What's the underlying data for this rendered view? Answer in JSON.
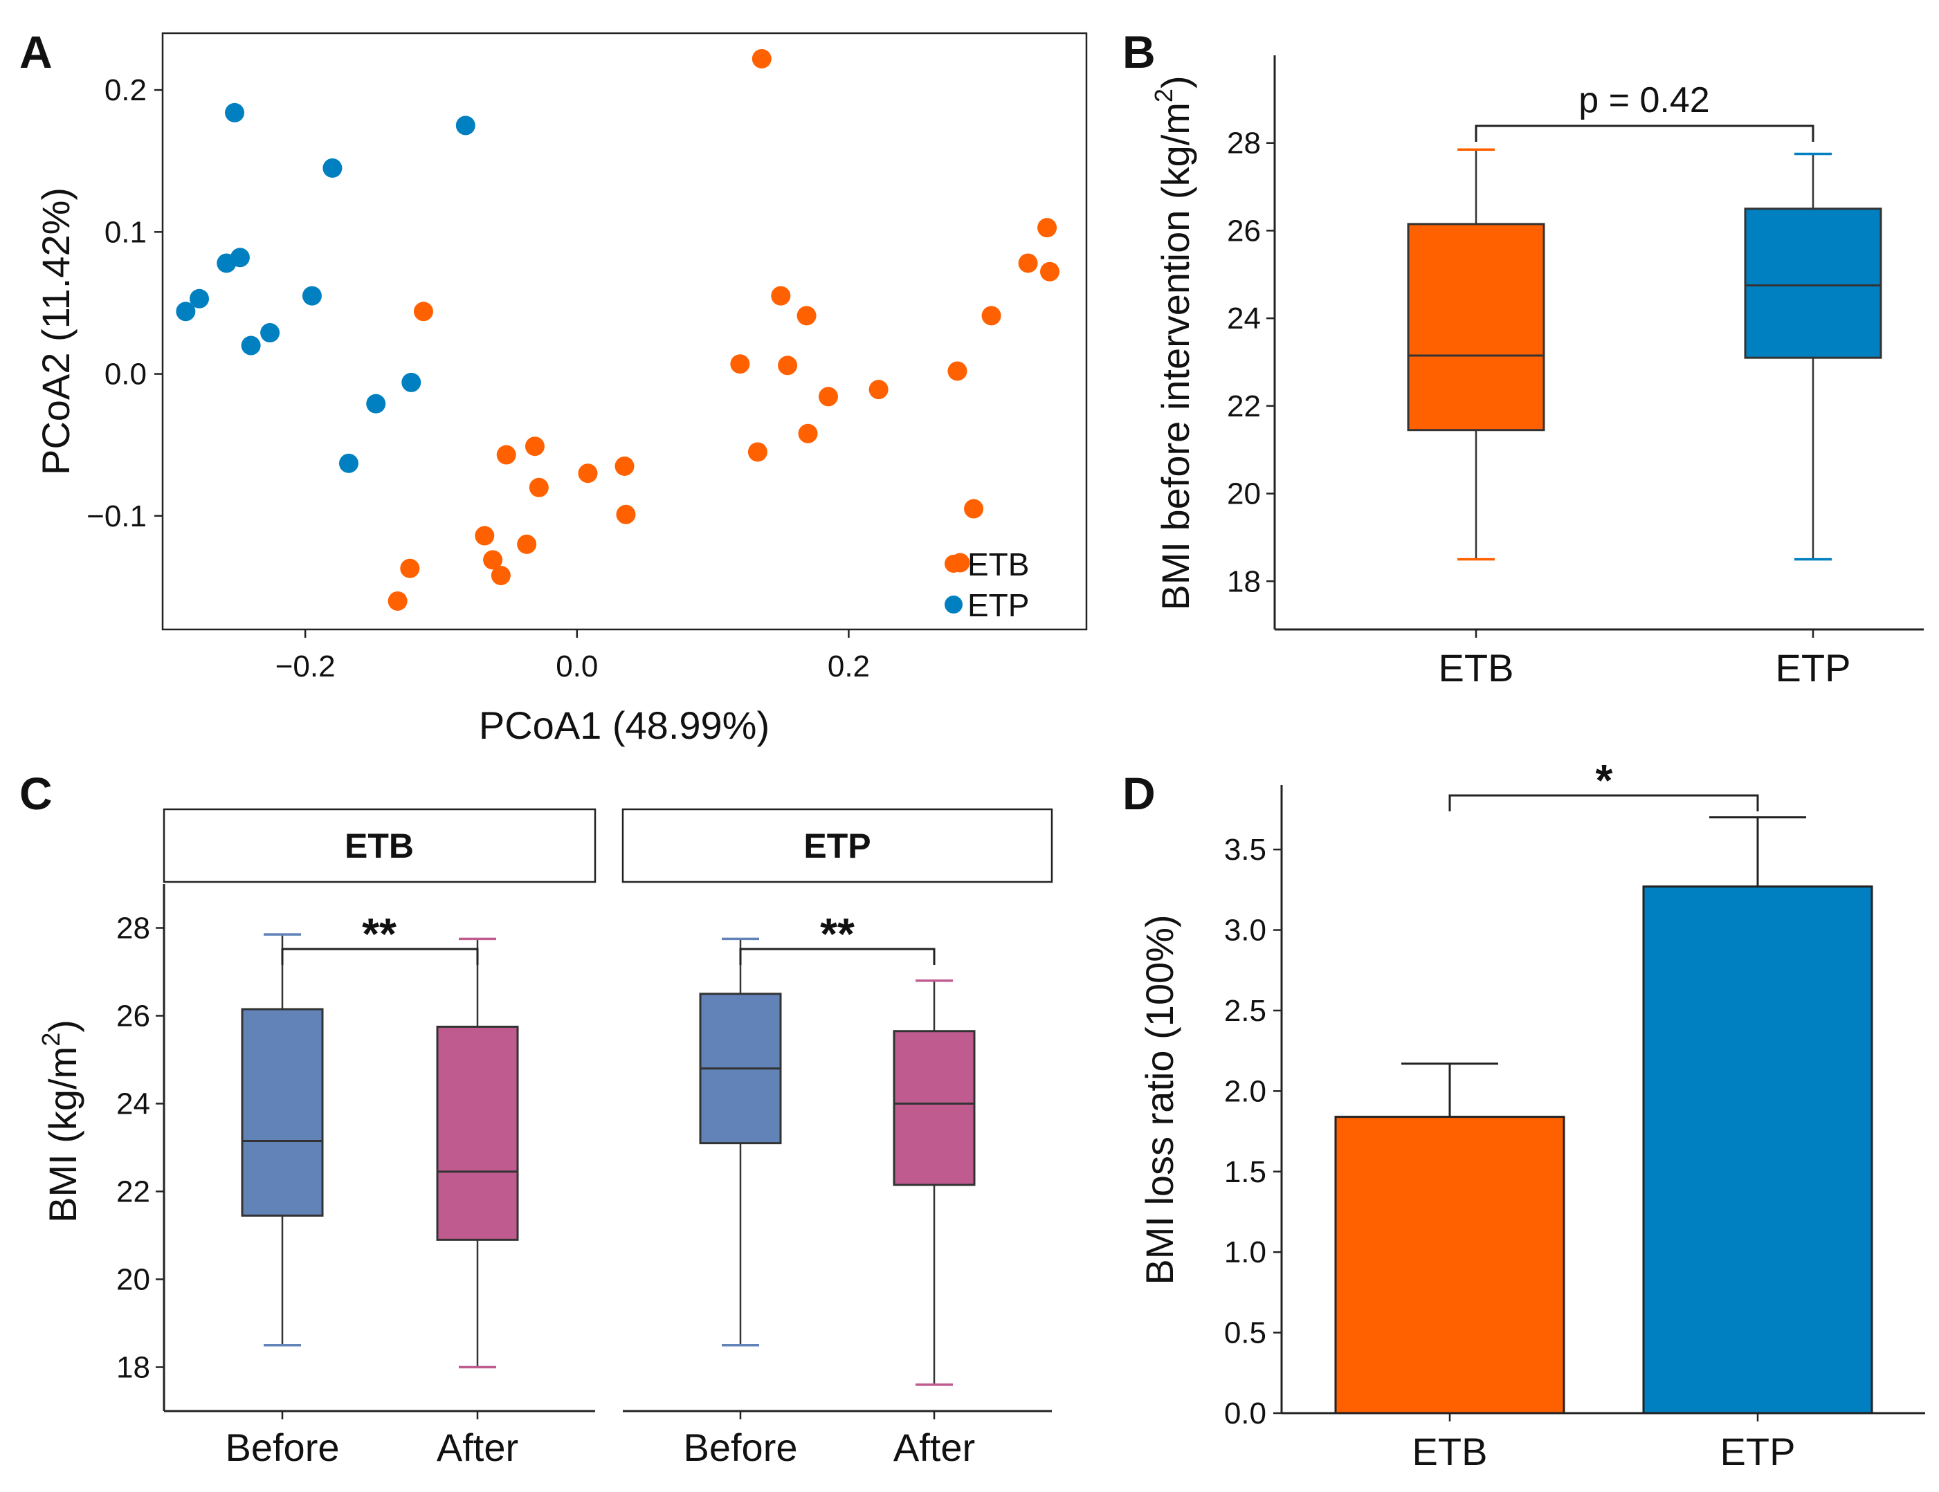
{
  "colors": {
    "etb": "#ff6000",
    "etp": "#0080c0",
    "before": "#6283b8",
    "after": "#c05b90",
    "axis": "#222222"
  },
  "panel_labels": {
    "a": "A",
    "b": "B",
    "c": "C",
    "d": "D"
  },
  "chart_data": [
    {
      "panel": "A",
      "type": "scatter",
      "title": "",
      "xlabel": "PCoA1 (48.99%)",
      "ylabel": "PCoA2 (11.42%)",
      "xlim": [
        -0.305,
        0.375
      ],
      "ylim": [
        -0.18,
        0.24
      ],
      "xticks": [
        -0.2,
        0.0,
        0.2
      ],
      "xtick_labels": [
        "−0.2",
        "0.0",
        "0.2"
      ],
      "yticks": [
        -0.1,
        0.0,
        0.1,
        0.2
      ],
      "ytick_labels": [
        "−0.1",
        "0.0",
        "0.1",
        "0.2"
      ],
      "legend": {
        "position": "bottom-right",
        "entries": [
          "ETB",
          "ETP"
        ]
      },
      "series": [
        {
          "name": "ETB",
          "points": [
            [
              0.136,
              0.222
            ],
            [
              0.346,
              0.103
            ],
            [
              0.332,
              0.078
            ],
            [
              0.348,
              0.072
            ],
            [
              -0.113,
              0.044
            ],
            [
              0.15,
              0.055
            ],
            [
              0.169,
              0.041
            ],
            [
              0.305,
              0.041
            ],
            [
              0.12,
              0.007
            ],
            [
              0.155,
              0.006
            ],
            [
              0.28,
              0.002
            ],
            [
              0.185,
              -0.016
            ],
            [
              0.222,
              -0.011
            ],
            [
              0.133,
              -0.055
            ],
            [
              0.17,
              -0.042
            ],
            [
              -0.052,
              -0.057
            ],
            [
              -0.031,
              -0.051
            ],
            [
              0.008,
              -0.07
            ],
            [
              0.035,
              -0.065
            ],
            [
              -0.028,
              -0.08
            ],
            [
              0.036,
              -0.099
            ],
            [
              0.292,
              -0.095
            ],
            [
              -0.068,
              -0.114
            ],
            [
              -0.037,
              -0.12
            ],
            [
              -0.062,
              -0.131
            ],
            [
              -0.056,
              -0.142
            ],
            [
              -0.123,
              -0.137
            ],
            [
              0.282,
              -0.133
            ],
            [
              -0.132,
              -0.16
            ]
          ]
        },
        {
          "name": "ETP",
          "points": [
            [
              -0.252,
              0.184
            ],
            [
              -0.082,
              0.175
            ],
            [
              -0.18,
              0.145
            ],
            [
              -0.258,
              0.078
            ],
            [
              -0.248,
              0.082
            ],
            [
              -0.288,
              0.044
            ],
            [
              -0.278,
              0.053
            ],
            [
              -0.195,
              0.055
            ],
            [
              -0.226,
              0.029
            ],
            [
              -0.24,
              0.02
            ],
            [
              -0.122,
              -0.006
            ],
            [
              -0.148,
              -0.021
            ],
            [
              -0.168,
              -0.063
            ]
          ]
        }
      ]
    },
    {
      "panel": "B",
      "type": "box",
      "title": "",
      "xlabel": "",
      "ylabel": "BMI before intervention (kg/m",
      "ylabel_sup": "2",
      "ylabel_close": ")",
      "ylim": [
        16.9,
        30.0
      ],
      "yticks": [
        18,
        20,
        22,
        24,
        26,
        28
      ],
      "categories": [
        "ETB",
        "ETP"
      ],
      "boxes": [
        {
          "name": "ETB",
          "min": 18.5,
          "q1": 21.45,
          "median": 23.15,
          "q3": 26.15,
          "max": 27.85
        },
        {
          "name": "ETP",
          "min": 18.5,
          "q1": 23.1,
          "median": 24.75,
          "q3": 26.5,
          "max": 27.75
        }
      ],
      "annotation": "p = 0.42"
    },
    {
      "panel": "C",
      "type": "box",
      "title": "",
      "ylabel": "BMI (kg/m",
      "ylabel_sup": "2",
      "ylabel_close": ")",
      "ylim": [
        17.0,
        29.0
      ],
      "yticks": [
        18,
        20,
        22,
        24,
        26,
        28
      ],
      "facets": [
        {
          "name": "ETB",
          "categories": [
            "Before",
            "After"
          ],
          "boxes": [
            {
              "name": "Before",
              "min": 18.5,
              "q1": 21.45,
              "median": 23.15,
              "q3": 26.15,
              "max": 27.85
            },
            {
              "name": "After",
              "min": 18.0,
              "q1": 20.9,
              "median": 22.45,
              "q3": 25.75,
              "max": 27.75
            }
          ],
          "annotation": "**"
        },
        {
          "name": "ETP",
          "categories": [
            "Before",
            "After"
          ],
          "boxes": [
            {
              "name": "Before",
              "min": 18.5,
              "q1": 23.1,
              "median": 24.8,
              "q3": 26.5,
              "max": 27.75
            },
            {
              "name": "After",
              "min": 17.6,
              "q1": 22.15,
              "median": 24.0,
              "q3": 25.65,
              "max": 26.8
            }
          ],
          "annotation": "**"
        }
      ]
    },
    {
      "panel": "D",
      "type": "bar",
      "title": "",
      "xlabel": "",
      "ylabel": "BMI loss ratio (100%)",
      "ylim": [
        0.0,
        3.9
      ],
      "yticks": [
        0.0,
        0.5,
        1.0,
        1.5,
        2.0,
        2.5,
        3.0,
        3.5
      ],
      "ytick_labels": [
        "0.0",
        "0.5",
        "1.0",
        "1.5",
        "2.0",
        "2.5",
        "3.0",
        "3.5"
      ],
      "categories": [
        "ETB",
        "ETP"
      ],
      "values": [
        1.84,
        3.27
      ],
      "errors": [
        0.33,
        0.43
      ],
      "annotation": "*"
    }
  ]
}
